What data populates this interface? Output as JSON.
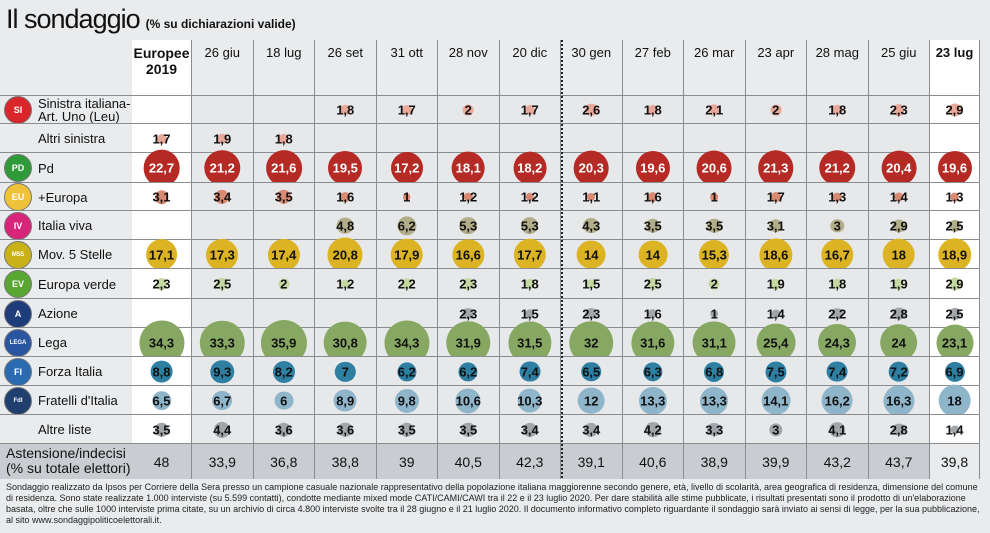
{
  "title": "Il sondaggio",
  "subtitle": "(% su dichiarazioni valide)",
  "chart_data": {
    "type": "table",
    "title": "Il sondaggio",
    "subtitle": "(% su dichiarazioni valide)",
    "columns": [
      "Europee 2019",
      "26 giu",
      "18 lug",
      "26 set",
      "31 ott",
      "28 nov",
      "20 dic",
      "30 gen",
      "27 feb",
      "26 mar",
      "23 apr",
      "28 mag",
      "25 giu",
      "23 lug"
    ],
    "rows": [
      {
        "label": "Sinistra italiana-\nArt. Uno (Leu)",
        "logo": "SI",
        "color": "#e8a89a",
        "logo_color": "#d9262a",
        "values": [
          null,
          null,
          null,
          1.8,
          1.7,
          2,
          1.7,
          2.6,
          1.8,
          2.1,
          2,
          1.8,
          2.3,
          2.9
        ]
      },
      {
        "label": "Altri sinistra",
        "logo": "",
        "color": "#e8a89a",
        "logo_color": "",
        "values": [
          1.7,
          1.9,
          1.8,
          null,
          null,
          null,
          null,
          null,
          null,
          null,
          null,
          null,
          null,
          null
        ]
      },
      {
        "label": "Pd",
        "logo": "PD",
        "color": "#b52a24",
        "logo_color": "#2e9a3a",
        "values": [
          22.7,
          21.2,
          21.6,
          19.5,
          17.2,
          18.1,
          18.2,
          20.3,
          19.6,
          20.6,
          21.3,
          21.2,
          20.4,
          19.6
        ]
      },
      {
        "label": "+Europa",
        "logo": "EU",
        "color": "#d98a72",
        "logo_color": "#f0c23a",
        "values": [
          3.1,
          3.4,
          3.5,
          1.6,
          1,
          1.2,
          1.2,
          1.1,
          1.6,
          1,
          1.7,
          1.3,
          1.4,
          1.3
        ]
      },
      {
        "label": "Italia viva",
        "logo": "IV",
        "color": "#b3ae8a",
        "logo_color": "#d8257a",
        "values": [
          null,
          null,
          null,
          4.8,
          6.2,
          5.3,
          5.3,
          4.3,
          3.5,
          3.5,
          3.1,
          3,
          2.9,
          2.5
        ]
      },
      {
        "label": "Mov. 5 Stelle",
        "logo": "M5S",
        "color": "#dcb423",
        "logo_color": "#c9b11a",
        "values": [
          17.1,
          17.3,
          17.4,
          20.8,
          17.9,
          16.6,
          17.7,
          14,
          14,
          15.3,
          18.6,
          16.7,
          18,
          18.9
        ]
      },
      {
        "label": "Europa verde",
        "logo": "EV",
        "color": "#c6d8a2",
        "logo_color": "#5aa632",
        "values": [
          2.3,
          2.5,
          2,
          1.2,
          2.2,
          2.3,
          1.8,
          1.5,
          2.5,
          2,
          1.9,
          1.8,
          1.9,
          2.9
        ]
      },
      {
        "label": "Azione",
        "logo": "A",
        "color": "#a2a6ab",
        "logo_color": "#1f3d7a",
        "values": [
          null,
          null,
          null,
          null,
          null,
          2.3,
          1.5,
          2.3,
          1.6,
          1,
          1.4,
          2.2,
          2.8,
          2.5
        ]
      },
      {
        "label": "Lega",
        "logo": "LEGA",
        "color": "#87a862",
        "logo_color": "#2a55a0",
        "values": [
          34.3,
          33.3,
          35.9,
          30.8,
          34.3,
          31.9,
          31.5,
          32,
          31.6,
          31.1,
          25.4,
          24.3,
          24,
          23.1
        ]
      },
      {
        "label": "Forza Italia",
        "logo": "FI",
        "color": "#2f7fa2",
        "logo_color": "#2a6ab0",
        "values": [
          8.8,
          9.3,
          8.2,
          7,
          6.2,
          6.2,
          7.4,
          6.5,
          6.3,
          6.8,
          7.5,
          7.4,
          7.2,
          6.9
        ]
      },
      {
        "label": "Fratelli d'Italia",
        "logo": "FdI",
        "color": "#8fb5cb",
        "logo_color": "#1f3f6e",
        "values": [
          6.5,
          6.7,
          6,
          8.9,
          9.8,
          10.6,
          10.3,
          12,
          13.3,
          13.3,
          14.1,
          16.2,
          16.3,
          18
        ]
      },
      {
        "label": "Altre liste",
        "logo": "",
        "color": "#a2a6ab",
        "logo_color": "",
        "values": [
          3.5,
          4.4,
          3.6,
          3.6,
          3.5,
          3.5,
          3.4,
          3.4,
          4.2,
          3.3,
          3,
          4.1,
          2.8,
          1.4
        ]
      }
    ],
    "abstention": {
      "label_1": "Astensione/indecisi",
      "label_2": "(% su totale elettori)",
      "values": [
        48,
        33.9,
        36.8,
        38.8,
        39,
        40.5,
        42.3,
        39.1,
        40.6,
        38.9,
        39.9,
        43.2,
        43.7,
        39.8
      ]
    }
  },
  "footnote": "Sondaggio realizzato da Ipsos per Corriere della Sera presso un campione casuale nazionale rappresentativo della popolazione italiana maggiorenne secondo genere, età, livello di scolarità, area geografica di residenza, dimensione del comune di residenza. Sono state realizzate 1.000 interviste (su 5.599 contatti), condotte mediante mixed mode CATI/CAMI/CAWI tra il 22 e il 23 luglio 2020. Per dare stabilità alle stime pubblicate, i risultati presentati sono il prodotto di un'elaborazione basata, oltre che sulle 1000 interviste prima citate, su un archivio di circa 4.800 interviste svolte tra il 28 giugno e il 21 luglio 2020. Il documento informativo completo riguardante il sondaggio sarà inviato ai sensi di legge, per la sua pubblicazione, al sito www.sondaggipoliticoelettorali.it."
}
